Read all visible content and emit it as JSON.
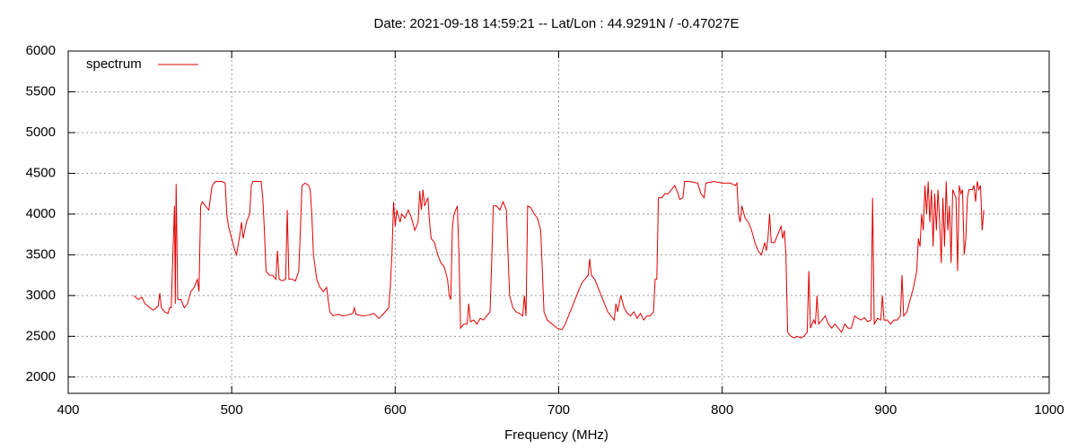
{
  "chart_data": {
    "type": "line",
    "title": "Date: 2021-09-18 14:59:21  --  Lat/Lon : 44.9291N / -0.47027E",
    "x_label": "Frequency (MHz)",
    "xlim": [
      400,
      1000
    ],
    "xticks": [
      400,
      500,
      600,
      700,
      800,
      900,
      1000
    ],
    "ylim": [
      1800,
      6000
    ],
    "yticks": [
      2000,
      2500,
      3000,
      3500,
      4000,
      4500,
      5000,
      5500,
      6000
    ],
    "grid": true,
    "legend": "top-left",
    "series": [
      {
        "name": "spectrum",
        "color": "#e00000",
        "x": [
          440,
          443,
          445,
          447,
          450,
          452,
          455,
          456,
          457,
          459,
          461,
          462,
          463,
          464,
          465,
          465.5,
          466,
          467,
          469,
          471,
          473,
          475,
          477,
          479,
          480,
          481,
          482,
          484,
          486,
          488,
          490,
          494,
          496,
          497,
          498,
          500,
          502,
          503,
          505,
          506,
          507,
          509,
          511,
          512,
          513,
          518,
          519,
          520,
          521,
          523,
          525,
          527,
          528,
          529,
          531,
          533,
          534,
          535,
          537,
          539,
          541,
          542,
          543,
          545,
          547,
          548,
          549,
          550,
          552,
          554,
          556,
          558,
          559,
          560,
          562,
          565,
          568,
          571,
          574,
          575,
          576,
          580,
          584,
          587,
          590,
          593,
          596,
          597,
          598,
          599,
          600,
          601,
          603,
          604,
          606,
          608,
          610,
          612,
          614,
          615,
          616,
          617,
          618,
          620,
          621,
          622,
          624,
          626,
          628,
          630,
          632,
          633,
          634,
          635,
          636,
          638,
          639,
          640,
          642,
          644,
          645,
          646,
          648,
          650,
          652,
          654,
          656,
          658,
          659,
          660,
          662,
          664,
          666,
          668,
          669,
          670,
          672,
          674,
          676,
          678,
          679,
          680,
          681,
          683,
          685,
          687,
          689,
          690,
          691,
          693,
          696,
          699,
          702,
          704,
          706,
          708,
          710,
          712,
          714,
          716,
          718,
          719,
          720,
          722,
          724,
          726,
          728,
          730,
          732,
          734,
          735,
          736,
          738,
          740,
          742,
          744,
          746,
          748,
          750,
          752,
          754,
          756,
          758,
          759,
          760,
          761,
          763,
          765,
          767,
          769,
          771,
          773,
          774,
          776,
          777,
          780,
          785,
          787,
          789,
          790,
          795,
          800,
          805,
          808,
          809,
          810,
          811,
          812,
          814,
          816,
          818,
          820,
          822,
          824,
          826,
          827,
          828,
          829,
          830,
          832,
          834,
          836,
          837,
          838,
          839,
          840,
          842,
          844,
          846,
          848,
          850,
          852,
          853,
          854,
          856,
          857,
          858,
          859,
          861,
          863,
          865,
          867,
          869,
          871,
          873,
          875,
          877,
          879,
          881,
          883,
          885,
          887,
          889,
          891,
          892,
          893,
          895,
          897,
          898,
          899,
          901,
          903,
          905,
          907,
          909,
          910,
          911,
          913,
          915,
          917,
          919,
          920,
          921,
          922,
          923,
          924,
          925,
          926,
          927,
          928,
          929,
          930,
          931,
          932,
          933,
          934,
          935,
          936,
          937,
          938,
          939,
          940,
          941,
          942,
          943,
          944,
          945,
          946,
          947,
          948,
          949,
          950,
          951,
          953,
          954,
          955,
          956,
          957,
          958,
          959,
          960
        ],
        "values": [
          3000,
          2950,
          2980,
          2900,
          2850,
          2820,
          2870,
          3030,
          2850,
          2800,
          2780,
          2850,
          2850,
          3500,
          4100,
          2900,
          4370,
          2950,
          2950,
          2850,
          2900,
          3050,
          3100,
          3200,
          3050,
          4100,
          4150,
          4100,
          4050,
          4350,
          4400,
          4400,
          4380,
          4000,
          3850,
          3700,
          3550,
          3500,
          3750,
          3900,
          3700,
          3900,
          4000,
          4350,
          4400,
          4400,
          4200,
          3800,
          3300,
          3250,
          3250,
          3200,
          3550,
          3200,
          3180,
          3200,
          4050,
          3200,
          3200,
          3180,
          3300,
          3800,
          4350,
          4380,
          4350,
          4300,
          4000,
          3500,
          3200,
          3100,
          3050,
          3100,
          2950,
          2800,
          2750,
          2770,
          2750,
          2760,
          2780,
          2850,
          2770,
          2750,
          2760,
          2780,
          2720,
          2780,
          2850,
          3100,
          3500,
          4150,
          3850,
          4050,
          3900,
          4000,
          3950,
          4050,
          3950,
          3800,
          3900,
          4280,
          4050,
          4300,
          4100,
          4200,
          3900,
          3700,
          3650,
          3500,
          3400,
          3350,
          3200,
          3000,
          2950,
          3850,
          4000,
          4100,
          3500,
          2600,
          2650,
          2650,
          2900,
          2680,
          2700,
          2650,
          2720,
          2700,
          2750,
          2800,
          3400,
          4100,
          4100,
          4050,
          4150,
          4050,
          3500,
          3000,
          2850,
          2800,
          2780,
          2750,
          3000,
          2750,
          4100,
          4080,
          4000,
          3950,
          3800,
          3300,
          2800,
          2700,
          2650,
          2600,
          2580,
          2650,
          2750,
          2850,
          2950,
          3050,
          3150,
          3200,
          3250,
          3450,
          3250,
          3200,
          3100,
          3000,
          2900,
          2800,
          2750,
          2700,
          2900,
          2800,
          3000,
          2850,
          2780,
          2750,
          2800,
          2720,
          2780,
          2700,
          2750,
          2750,
          2800,
          3200,
          3200,
          4200,
          4200,
          4250,
          4250,
          4300,
          4350,
          4250,
          4180,
          4200,
          4400,
          4400,
          4380,
          4250,
          4200,
          4380,
          4400,
          4380,
          4380,
          4350,
          4380,
          4000,
          3900,
          4100,
          3950,
          3900,
          3800,
          3650,
          3550,
          3500,
          3650,
          3550,
          3700,
          4000,
          3650,
          3650,
          3750,
          3850,
          3700,
          3800,
          3500,
          2550,
          2500,
          2480,
          2500,
          2480,
          2500,
          2550,
          3300,
          2600,
          2700,
          2650,
          3000,
          2650,
          2700,
          2750,
          2650,
          2600,
          2650,
          2600,
          2550,
          2650,
          2600,
          2600,
          2750,
          2720,
          2700,
          2730,
          2680,
          2700,
          4200,
          2650,
          2720,
          2700,
          3000,
          2700,
          2700,
          2650,
          2700,
          2700,
          2750,
          3250,
          2750,
          2800,
          2950,
          3100,
          3300,
          3700,
          3600,
          4000,
          3800,
          4350,
          4000,
          4400,
          3900,
          4300,
          3600,
          4250,
          3800,
          4300,
          3900,
          3400,
          4200,
          3600,
          4400,
          3800,
          4100,
          3400,
          4300,
          4250,
          4200,
          3300,
          4350,
          4250,
          4300,
          3500,
          3700,
          4200,
          4300,
          4300,
          4350,
          4150,
          4400,
          4300,
          4350,
          3800,
          4050
        ]
      }
    ]
  }
}
